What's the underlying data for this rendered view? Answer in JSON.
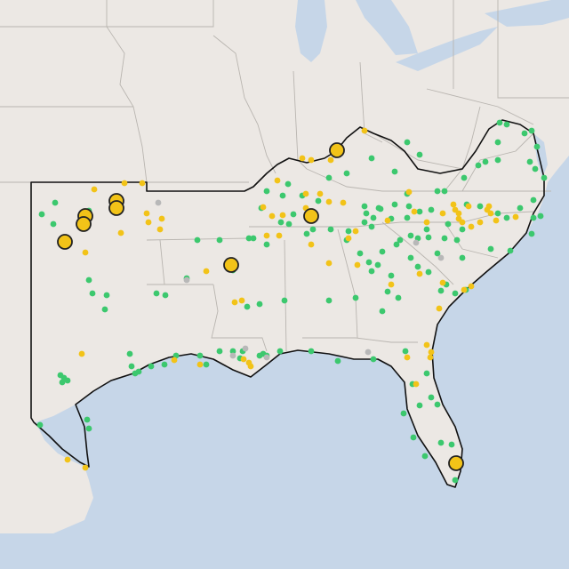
{
  "map": {
    "colors": {
      "land": "#ece8e4",
      "water": "#c6d6e8",
      "state_border": "#b9b5b0",
      "region_outline": "#111111",
      "marker_green": "#3cc86e",
      "marker_yellow": "#f2c318",
      "marker_gray": "#b8b8b8",
      "large_marker_stroke": "#222222"
    },
    "legend": [],
    "markers": {
      "large_yellow": 9,
      "small_yellow": 70,
      "small_green": 150,
      "small_gray": 8
    }
  }
}
